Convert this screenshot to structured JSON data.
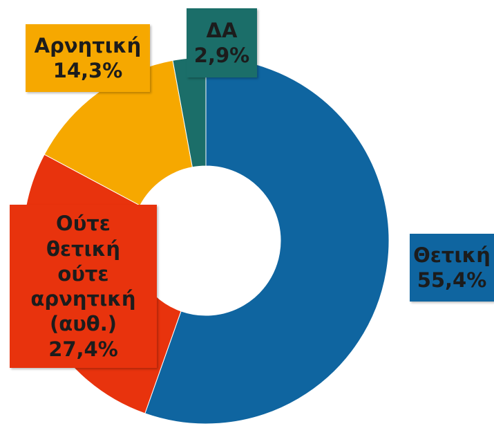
{
  "chart_data": {
    "type": "donut",
    "categories": [
      "Θετική",
      "Ούτε θετική ούτε αρνητική (αυθ.)",
      "Αρνητική",
      "ΔΑ"
    ],
    "values": [
      55.4,
      27.4,
      14.3,
      2.9
    ],
    "value_labels": [
      "55,4%",
      "27,4%",
      "14,3%",
      "2,9%"
    ],
    "colors": [
      "#0f65a0",
      "#e8330d",
      "#f6a800",
      "#1b6e69"
    ]
  }
}
